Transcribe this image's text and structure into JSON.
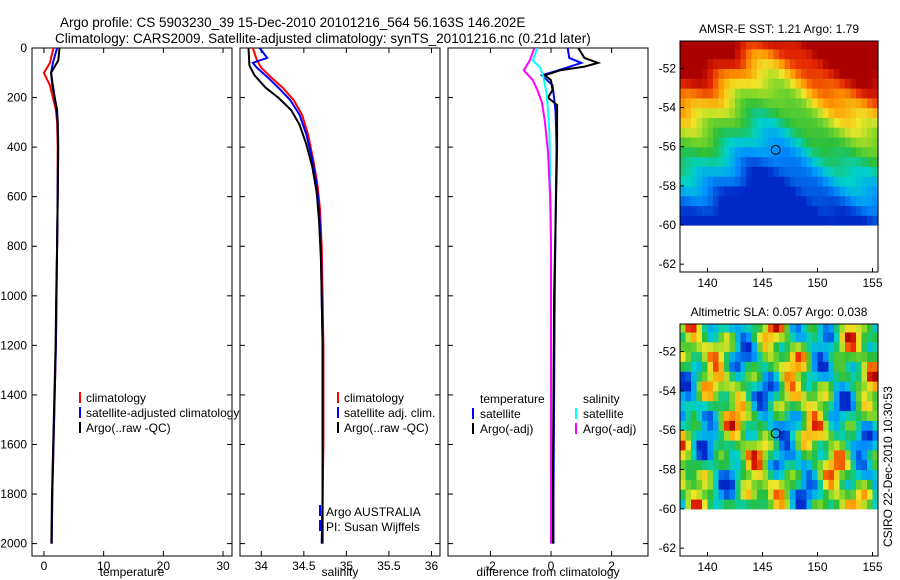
{
  "header": {
    "line1": "Argo profile: CS 5903230_39 15-Dec-2010 20101216_564 56.163S 146.202E",
    "line2": "Climatology: CARS2009. Satellite-adjusted climatology: synTS_20101216.nc (0.21d later)"
  },
  "stamp": "CSIRO 22-Dec-2010 10:30:53",
  "colors": {
    "climatology": "#ff0000",
    "satellite": "#0000ff",
    "argo": "#000000",
    "satellite_cyan": "#00ffff",
    "argo_magenta": "#ff00ff"
  },
  "chart_data": [
    {
      "type": "line",
      "title": "",
      "xlabel": "temperature",
      "ylabel": "",
      "xlim": [
        -2,
        31.5
      ],
      "ylim": [
        2050,
        0
      ],
      "xticks": [
        0,
        10,
        20,
        30
      ],
      "yticks": [
        0,
        200,
        400,
        600,
        800,
        1000,
        1200,
        1400,
        1600,
        1800,
        2000
      ],
      "legend": {
        "placement": "lower-middle",
        "entries": [
          "climatology",
          "satellite-adjusted climatology",
          "Argo(..raw -QC)"
        ]
      },
      "series": [
        {
          "name": "climatology",
          "color": "#ff0000",
          "points": [
            [
              1.6,
              0
            ],
            [
              1.0,
              60
            ],
            [
              0.0,
              100
            ],
            [
              1.0,
              150
            ],
            [
              1.5,
              200
            ],
            [
              2.0,
              250
            ],
            [
              2.2,
              300
            ],
            [
              2.3,
              400
            ],
            [
              2.3,
              600
            ],
            [
              2.2,
              800
            ],
            [
              2.1,
              1000
            ],
            [
              2.0,
              1200
            ],
            [
              1.8,
              1400
            ],
            [
              1.6,
              1600
            ],
            [
              1.4,
              1800
            ],
            [
              1.3,
              2000
            ]
          ]
        },
        {
          "name": "satellite-adjusted climatology",
          "color": "#0000ff",
          "points": [
            [
              2.2,
              0
            ],
            [
              1.5,
              60
            ],
            [
              1.2,
              100
            ],
            [
              1.5,
              150
            ],
            [
              1.8,
              200
            ],
            [
              2.1,
              250
            ],
            [
              2.3,
              300
            ],
            [
              2.4,
              400
            ],
            [
              2.3,
              600
            ],
            [
              2.2,
              800
            ],
            [
              2.1,
              1000
            ],
            [
              2.0,
              1200
            ],
            [
              1.8,
              1400
            ],
            [
              1.6,
              1600
            ],
            [
              1.4,
              1800
            ],
            [
              1.3,
              2000
            ]
          ]
        },
        {
          "name": "Argo(..raw -QC)",
          "color": "#000000",
          "points": [
            [
              2.6,
              0
            ],
            [
              2.4,
              50
            ],
            [
              1.2,
              100
            ],
            [
              1.4,
              150
            ],
            [
              1.8,
              200
            ],
            [
              2.2,
              250
            ],
            [
              2.3,
              300
            ],
            [
              2.35,
              400
            ],
            [
              2.3,
              600
            ],
            [
              2.2,
              800
            ],
            [
              2.05,
              1000
            ],
            [
              1.95,
              1200
            ],
            [
              1.75,
              1400
            ],
            [
              1.55,
              1600
            ],
            [
              1.35,
              1800
            ],
            [
              1.25,
              2000
            ]
          ]
        }
      ]
    },
    {
      "type": "line",
      "title": "",
      "xlabel": "salinity",
      "ylabel": "",
      "xlim": [
        33.75,
        36.1
      ],
      "ylim": [
        2050,
        0
      ],
      "xticks": [
        34,
        34.5,
        35,
        35.5,
        36
      ],
      "xtick_labels": [
        "34",
        "34.5",
        "35",
        "35.5",
        "36"
      ],
      "legend": {
        "placement": "lower-right",
        "entries": [
          "climatology",
          "satellite adj. clim.",
          "Argo(..raw -QC)"
        ]
      },
      "annotations": [
        "Argo AUSTRALIA",
        "PI: Susan Wijffels"
      ],
      "series": [
        {
          "name": "climatology",
          "color": "#ff0000",
          "points": [
            [
              33.9,
              0
            ],
            [
              33.95,
              50
            ],
            [
              34.0,
              80
            ],
            [
              34.12,
              120
            ],
            [
              34.25,
              160
            ],
            [
              34.38,
              210
            ],
            [
              34.48,
              270
            ],
            [
              34.55,
              350
            ],
            [
              34.61,
              450
            ],
            [
              34.66,
              550
            ],
            [
              34.69,
              650
            ],
            [
              34.71,
              800
            ],
            [
              34.72,
              1000
            ],
            [
              34.73,
              1200
            ],
            [
              34.73,
              1400
            ],
            [
              34.73,
              1600
            ],
            [
              34.72,
              1800
            ],
            [
              34.72,
              2000
            ]
          ]
        },
        {
          "name": "satellite adj. clim.",
          "color": "#0000ff",
          "points": [
            [
              33.98,
              0
            ],
            [
              34.07,
              40
            ],
            [
              33.9,
              60
            ],
            [
              33.95,
              80
            ],
            [
              34.08,
              120
            ],
            [
              34.2,
              160
            ],
            [
              34.34,
              210
            ],
            [
              34.45,
              270
            ],
            [
              34.53,
              350
            ],
            [
              34.6,
              450
            ],
            [
              34.65,
              550
            ],
            [
              34.68,
              650
            ],
            [
              34.7,
              800
            ],
            [
              34.71,
              1000
            ],
            [
              34.72,
              1200
            ],
            [
              34.72,
              1400
            ],
            [
              34.72,
              1600
            ],
            [
              34.72,
              1800
            ],
            [
              34.72,
              2000
            ]
          ]
        },
        {
          "name": "Argo(..raw -QC)",
          "color": "#000000",
          "points": [
            [
              33.85,
              0
            ],
            [
              33.86,
              70
            ],
            [
              33.92,
              110
            ],
            [
              34.05,
              160
            ],
            [
              34.2,
              200
            ],
            [
              34.35,
              250
            ],
            [
              34.45,
              310
            ],
            [
              34.53,
              390
            ],
            [
              34.6,
              480
            ],
            [
              34.65,
              580
            ],
            [
              34.68,
              700
            ],
            [
              34.7,
              850
            ],
            [
              34.71,
              1000
            ],
            [
              34.72,
              1200
            ],
            [
              34.72,
              1400
            ],
            [
              34.72,
              1600
            ],
            [
              34.72,
              1800
            ],
            [
              34.71,
              2000
            ]
          ]
        }
      ]
    },
    {
      "type": "line",
      "title": "",
      "xlabel": "difference from climatology",
      "ylabel": "",
      "xlim": [
        -3.4,
        3.2
      ],
      "ylim": [
        2050,
        0
      ],
      "xticks": [
        -2,
        0,
        2
      ],
      "legend": {
        "placement": "lower-middle",
        "columns": [
          {
            "heading": "temperature",
            "entries": [
              "satellite",
              "Argo(-adj)"
            ]
          },
          {
            "heading": "salinity",
            "entries": [
              "satellite",
              "Argo(-adj)"
            ]
          }
        ]
      },
      "series": [
        {
          "name": "temperature satellite",
          "color": "#0000ff",
          "points": [
            [
              0.55,
              0
            ],
            [
              0.6,
              40
            ],
            [
              1.0,
              60
            ],
            [
              0.5,
              80
            ],
            [
              -0.3,
              110
            ],
            [
              0.05,
              150
            ],
            [
              0.1,
              200
            ],
            [
              0.15,
              260
            ],
            [
              0.18,
              400
            ],
            [
              0.15,
              700
            ],
            [
              0.12,
              1000
            ],
            [
              0.1,
              1400
            ],
            [
              0.08,
              1800
            ],
            [
              0.08,
              2000
            ]
          ]
        },
        {
          "name": "temperature Argo(-adj)",
          "color": "#000000",
          "points": [
            [
              0.9,
              0
            ],
            [
              1.1,
              40
            ],
            [
              1.55,
              60
            ],
            [
              1.1,
              75
            ],
            [
              0.3,
              90
            ],
            [
              -0.2,
              110
            ],
            [
              0.0,
              130
            ],
            [
              0.05,
              170
            ],
            [
              -0.1,
              200
            ],
            [
              0.2,
              230
            ],
            [
              0.2,
              400
            ],
            [
              0.15,
              700
            ],
            [
              0.1,
              1000
            ],
            [
              0.08,
              1400
            ],
            [
              0.06,
              1800
            ],
            [
              0.05,
              2000
            ]
          ]
        },
        {
          "name": "salinity satellite",
          "color": "#00ffff",
          "points": [
            [
              -0.45,
              0
            ],
            [
              -0.6,
              50
            ],
            [
              -0.35,
              80
            ],
            [
              -0.25,
              120
            ],
            [
              -0.15,
              180
            ],
            [
              -0.1,
              250
            ],
            [
              -0.05,
              350
            ],
            [
              -0.03,
              500
            ],
            [
              0.0,
              700
            ],
            [
              0.0,
              1000
            ],
            [
              0.0,
              1400
            ],
            [
              0.0,
              2000
            ]
          ]
        },
        {
          "name": "salinity Argo(-adj)",
          "color": "#ff00ff",
          "points": [
            [
              -0.55,
              0
            ],
            [
              -0.7,
              50
            ],
            [
              -0.9,
              90
            ],
            [
              -0.6,
              130
            ],
            [
              -0.45,
              170
            ],
            [
              -0.3,
              220
            ],
            [
              -0.2,
              300
            ],
            [
              -0.1,
              420
            ],
            [
              -0.03,
              600
            ],
            [
              0.0,
              800
            ],
            [
              0.0,
              1200
            ],
            [
              0.0,
              2000
            ]
          ]
        }
      ]
    },
    {
      "type": "heatmap",
      "title": "AMSR-E SST: 1.21 Argo: 1.79",
      "xlim": [
        137.5,
        155.5
      ],
      "ylim": [
        -62.4,
        -50.6
      ],
      "xticks": [
        140,
        145,
        150,
        155
      ],
      "yticks": [
        -52,
        -54,
        -56,
        -58,
        -60,
        -62
      ],
      "data_ylim": [
        -60,
        -50.6
      ],
      "marker": {
        "lon": 146.202,
        "lat": -56.163
      }
    },
    {
      "type": "heatmap",
      "title": "Altimetric SLA: 0.057 Argo: 0.038",
      "xlim": [
        137.5,
        155.5
      ],
      "ylim": [
        -62.4,
        -50.6
      ],
      "xticks": [
        140,
        145,
        150,
        155
      ],
      "yticks": [
        -52,
        -54,
        -56,
        -58,
        -60,
        -62
      ],
      "data_ylim": [
        -60,
        -50.6
      ],
      "marker": {
        "lon": 146.202,
        "lat": -56.163
      }
    }
  ]
}
